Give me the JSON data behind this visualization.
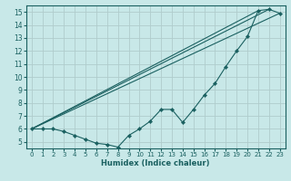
{
  "xlabel": "Humidex (Indice chaleur)",
  "bg_color": "#c8e8e8",
  "grid_color": "#b0cccc",
  "line_color": "#1a6060",
  "xlim": [
    -0.5,
    23.5
  ],
  "ylim": [
    4.5,
    15.5
  ],
  "xticks": [
    0,
    1,
    2,
    3,
    4,
    5,
    6,
    7,
    8,
    9,
    10,
    11,
    12,
    13,
    14,
    15,
    16,
    17,
    18,
    19,
    20,
    21,
    22,
    23
  ],
  "yticks": [
    5,
    6,
    7,
    8,
    9,
    10,
    11,
    12,
    13,
    14,
    15
  ],
  "curve_x": [
    0,
    1,
    2,
    3,
    4,
    5,
    6,
    7,
    8,
    9,
    10,
    11,
    12,
    13,
    14,
    15,
    16,
    17,
    18,
    19,
    20,
    21,
    22,
    23
  ],
  "curve_y": [
    6.0,
    6.0,
    6.0,
    5.8,
    5.5,
    5.2,
    4.9,
    4.8,
    4.6,
    5.5,
    6.0,
    6.6,
    7.5,
    7.5,
    6.5,
    7.5,
    8.6,
    9.5,
    10.8,
    12.0,
    13.1,
    15.1,
    15.2,
    14.9
  ],
  "line1_x": [
    0,
    21
  ],
  "line1_y": [
    6.0,
    15.1
  ],
  "line2_x": [
    0,
    22
  ],
  "line2_y": [
    6.0,
    15.2
  ],
  "line3_x": [
    0,
    23
  ],
  "line3_y": [
    6.0,
    14.9
  ]
}
